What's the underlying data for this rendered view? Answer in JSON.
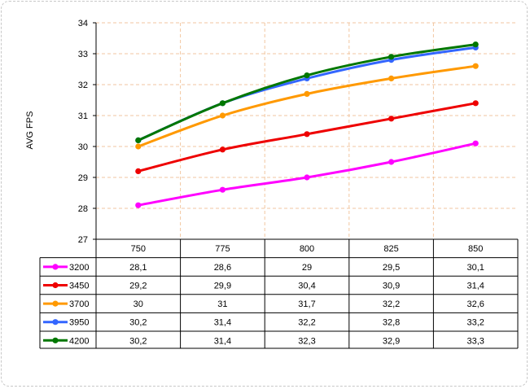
{
  "chart_data": {
    "type": "line",
    "ylabel": "AVG FPS",
    "xlabel": "",
    "categories": [
      "750",
      "775",
      "800",
      "825",
      "850"
    ],
    "ylim": [
      27,
      34
    ],
    "yticks": [
      "27",
      "28",
      "29",
      "30",
      "31",
      "32",
      "33",
      "34"
    ],
    "grid": true,
    "legend": "data-table-left",
    "series": [
      {
        "name": "3200",
        "color": "#ff00ff",
        "values": [
          28.1,
          28.6,
          29,
          29.5,
          30.1
        ],
        "labels": [
          "28,1",
          "28,6",
          "29",
          "29,5",
          "30,1"
        ]
      },
      {
        "name": "3450",
        "color": "#ee0000",
        "values": [
          29.2,
          29.9,
          30.4,
          30.9,
          31.4
        ],
        "labels": [
          "29,2",
          "29,9",
          "30,4",
          "30,9",
          "31,4"
        ]
      },
      {
        "name": "3700",
        "color": "#ff9900",
        "values": [
          30,
          31,
          31.7,
          32.2,
          32.6
        ],
        "labels": [
          "30",
          "31",
          "31,7",
          "32,2",
          "32,6"
        ]
      },
      {
        "name": "3950",
        "color": "#3366ff",
        "values": [
          30.2,
          31.4,
          32.2,
          32.8,
          33.2
        ],
        "labels": [
          "30,2",
          "31,4",
          "32,2",
          "32,8",
          "33,2"
        ]
      },
      {
        "name": "4200",
        "color": "#007700",
        "values": [
          30.2,
          31.4,
          32.3,
          32.9,
          33.3
        ],
        "labels": [
          "30,2",
          "31,4",
          "32,3",
          "32,9",
          "33,3"
        ]
      }
    ]
  }
}
